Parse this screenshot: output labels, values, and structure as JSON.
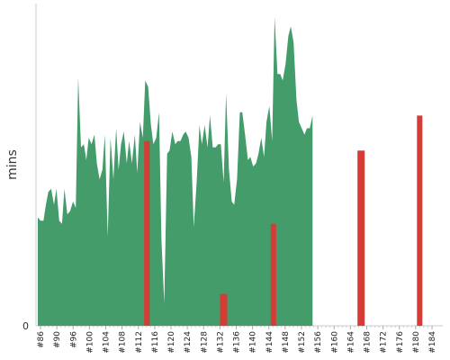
{
  "chart_data": {
    "type": "area",
    "ylabel": "mins",
    "ytick_labels": [
      "0"
    ],
    "ylim": [
      0,
      100
    ],
    "xlim": [
      86,
      186
    ],
    "colors": {
      "ok": "#449c6a",
      "fail": "#d63c35",
      "axis": "#cccccc"
    },
    "x_tick_labels": [
      "#86",
      "#90",
      "#96",
      "#100",
      "#104",
      "#108",
      "#112",
      "#116",
      "#120",
      "#124",
      "#128",
      "#132",
      "#136",
      "#140",
      "#144",
      "#148",
      "#152",
      "#156",
      "#160",
      "#164",
      "#168",
      "#172",
      "#176",
      "#180",
      "#184"
    ],
    "series": [
      {
        "values": [
          {
            "build": 86,
            "mins": 34
          },
          {
            "build": 86.7,
            "mins": 33
          },
          {
            "build": 87.4,
            "mins": 33
          },
          {
            "build": 88,
            "mins": 38
          },
          {
            "build": 88.6,
            "mins": 42
          },
          {
            "build": 89.3,
            "mins": 43
          },
          {
            "build": 90,
            "mins": 38
          },
          {
            "build": 90.6,
            "mins": 43
          },
          {
            "build": 91.3,
            "mins": 33
          },
          {
            "build": 92,
            "mins": 32
          },
          {
            "build": 92.6,
            "mins": 43
          },
          {
            "build": 93.3,
            "mins": 35
          },
          {
            "build": 94,
            "mins": 36
          },
          {
            "build": 94.7,
            "mins": 39
          },
          {
            "build": 95.4,
            "mins": 37
          },
          {
            "build": 96,
            "mins": 78
          },
          {
            "build": 96.7,
            "mins": 56
          },
          {
            "build": 97.4,
            "mins": 57
          },
          {
            "build": 98,
            "mins": 52
          },
          {
            "build": 98.6,
            "mins": 59
          },
          {
            "build": 99.3,
            "mins": 57
          },
          {
            "build": 100,
            "mins": 60
          },
          {
            "build": 100.6,
            "mins": 51
          },
          {
            "build": 101.3,
            "mins": 46
          },
          {
            "build": 102,
            "mins": 49
          },
          {
            "build": 102.6,
            "mins": 60
          },
          {
            "build": 103.3,
            "mins": 28
          },
          {
            "build": 104,
            "mins": 59
          },
          {
            "build": 104.7,
            "mins": 46
          },
          {
            "build": 105.4,
            "mins": 62
          },
          {
            "build": 106,
            "mins": 49
          },
          {
            "build": 106.6,
            "mins": 57
          },
          {
            "build": 107.3,
            "mins": 61
          },
          {
            "build": 108,
            "mins": 51
          },
          {
            "build": 108.6,
            "mins": 58
          },
          {
            "build": 109.3,
            "mins": 51
          },
          {
            "build": 110,
            "mins": 60
          },
          {
            "build": 110.6,
            "mins": 48
          },
          {
            "build": 111.3,
            "mins": 64
          },
          {
            "build": 112,
            "mins": 59
          },
          {
            "build": 112.6,
            "mins": 77
          },
          {
            "build": 113.3,
            "mins": 75
          },
          {
            "build": 114,
            "mins": 63
          },
          {
            "build": 114.6,
            "mins": 57
          },
          {
            "build": 115.3,
            "mins": 59
          },
          {
            "build": 116,
            "mins": 67
          },
          {
            "build": 116.6,
            "mins": 27
          },
          {
            "build": 117.3,
            "mins": 7
          },
          {
            "build": 118,
            "mins": 54
          },
          {
            "build": 118.6,
            "mins": 55
          },
          {
            "build": 119.3,
            "mins": 61
          },
          {
            "build": 120,
            "mins": 57
          },
          {
            "build": 120.6,
            "mins": 58
          },
          {
            "build": 121.3,
            "mins": 58
          },
          {
            "build": 122,
            "mins": 60
          },
          {
            "build": 122.6,
            "mins": 61
          },
          {
            "build": 123.3,
            "mins": 59
          },
          {
            "build": 124,
            "mins": 53
          },
          {
            "build": 124.6,
            "mins": 31
          },
          {
            "build": 125.3,
            "mins": 45
          },
          {
            "build": 126,
            "mins": 63
          },
          {
            "build": 126.6,
            "mins": 57
          },
          {
            "build": 127.3,
            "mins": 63
          },
          {
            "build": 128,
            "mins": 56
          },
          {
            "build": 128.6,
            "mins": 66
          },
          {
            "build": 129.3,
            "mins": 56
          },
          {
            "build": 130,
            "mins": 56
          },
          {
            "build": 130.6,
            "mins": 57
          },
          {
            "build": 131.3,
            "mins": 57
          },
          {
            "build": 132,
            "mins": 45
          },
          {
            "build": 132.6,
            "mins": 73
          },
          {
            "build": 133.3,
            "mins": 49
          },
          {
            "build": 134,
            "mins": 39
          },
          {
            "build": 134.6,
            "mins": 38
          },
          {
            "build": 135.3,
            "mins": 46
          },
          {
            "build": 136,
            "mins": 67
          },
          {
            "build": 136.6,
            "mins": 67
          },
          {
            "build": 137.3,
            "mins": 60
          },
          {
            "build": 138,
            "mins": 52
          },
          {
            "build": 138.6,
            "mins": 53
          },
          {
            "build": 139.3,
            "mins": 50
          },
          {
            "build": 140,
            "mins": 51
          },
          {
            "build": 140.6,
            "mins": 54
          },
          {
            "build": 141.3,
            "mins": 59
          },
          {
            "build": 142,
            "mins": 53
          },
          {
            "build": 142.6,
            "mins": 64
          },
          {
            "build": 143.3,
            "mins": 69
          },
          {
            "build": 144,
            "mins": 58
          },
          {
            "build": 144.6,
            "mins": 97
          },
          {
            "build": 145.3,
            "mins": 79
          },
          {
            "build": 146,
            "mins": 79
          },
          {
            "build": 146.6,
            "mins": 77
          },
          {
            "build": 147.3,
            "mins": 82
          },
          {
            "build": 148,
            "mins": 91
          },
          {
            "build": 148.6,
            "mins": 94
          },
          {
            "build": 149.3,
            "mins": 89
          },
          {
            "build": 150,
            "mins": 71
          },
          {
            "build": 150.6,
            "mins": 64
          },
          {
            "build": 151.3,
            "mins": 62
          },
          {
            "build": 152,
            "mins": 60
          },
          {
            "build": 152.6,
            "mins": 62
          },
          {
            "build": 153.3,
            "mins": 62
          },
          {
            "build": 154,
            "mins": 66
          }
        ]
      }
    ],
    "failed_builds": [
      {
        "build": 113,
        "mins": 58
      },
      {
        "build": 132,
        "mins": 10
      },
      {
        "build": 144.3,
        "mins": 32
      },
      {
        "build": 166,
        "mins": 55
      },
      {
        "build": 180.5,
        "mins": 66
      }
    ]
  }
}
